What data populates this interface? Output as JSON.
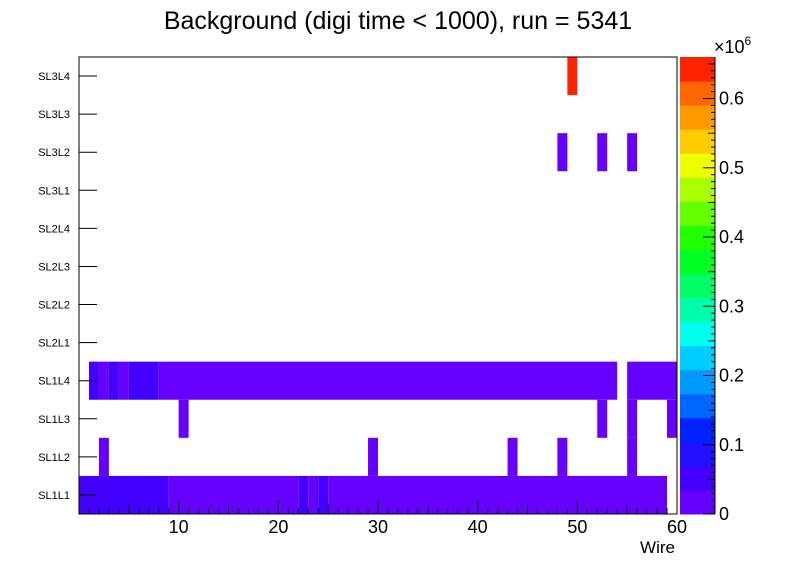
{
  "chart_data": {
    "type": "heatmap",
    "title": "Background (digi time < 1000), run = 5341",
    "xlabel": "Wire",
    "ylabel": "",
    "xlim": [
      0,
      60
    ],
    "x_ticks": [
      "10",
      "20",
      "30",
      "40",
      "50",
      "60"
    ],
    "y_categories": [
      "SL1L1",
      "SL1L2",
      "SL1L3",
      "SL1L4",
      "SL2L1",
      "SL2L2",
      "SL2L3",
      "SL2L4",
      "SL3L1",
      "SL3L2",
      "SL3L3",
      "SL3L4"
    ],
    "z_exponent_label": "×10",
    "z_exponent": "6",
    "z_ticks": [
      "0",
      "0.1",
      "0.2",
      "0.3",
      "0.4",
      "0.5",
      "0.6"
    ],
    "zlim": [
      0,
      0.66
    ],
    "palette": [
      "#6600ff",
      "#4400ff",
      "#2211ff",
      "#0022ff",
      "#0066ff",
      "#0099ff",
      "#00ccff",
      "#00ffee",
      "#00ffaa",
      "#00ff66",
      "#00ff22",
      "#22ff00",
      "#66ff00",
      "#aaff00",
      "#eeff00",
      "#ffcc00",
      "#ff9900",
      "#ff6600",
      "#ff2200"
    ],
    "cells": [
      {
        "row": "SL1L1",
        "x0": 0,
        "x1": 9,
        "value": 0.04
      },
      {
        "row": "SL1L1",
        "x0": 9,
        "x1": 22,
        "value": 0.02
      },
      {
        "row": "SL1L1",
        "x0": 22,
        "x1": 23,
        "value": 0.04
      },
      {
        "row": "SL1L1",
        "x0": 23,
        "x1": 24,
        "value": 0.02
      },
      {
        "row": "SL1L1",
        "x0": 24,
        "x1": 25,
        "value": 0.04
      },
      {
        "row": "SL1L1",
        "x0": 25,
        "x1": 59,
        "value": 0.02
      },
      {
        "row": "SL1L2",
        "x0": 2,
        "x1": 3,
        "value": 0.02
      },
      {
        "row": "SL1L2",
        "x0": 29,
        "x1": 30,
        "value": 0.02
      },
      {
        "row": "SL1L2",
        "x0": 43,
        "x1": 44,
        "value": 0.02
      },
      {
        "row": "SL1L2",
        "x0": 48,
        "x1": 49,
        "value": 0.02
      },
      {
        "row": "SL1L2",
        "x0": 55,
        "x1": 56,
        "value": 0.02
      },
      {
        "row": "SL1L3",
        "x0": 10,
        "x1": 11,
        "value": 0.02
      },
      {
        "row": "SL1L3",
        "x0": 52,
        "x1": 53,
        "value": 0.02
      },
      {
        "row": "SL1L3",
        "x0": 55,
        "x1": 56,
        "value": 0.02
      },
      {
        "row": "SL1L3",
        "x0": 59,
        "x1": 60,
        "value": 0.02
      },
      {
        "row": "SL1L4",
        "x0": 1,
        "x1": 2,
        "value": 0.04
      },
      {
        "row": "SL1L4",
        "x0": 2,
        "x1": 3,
        "value": 0.02
      },
      {
        "row": "SL1L4",
        "x0": 3,
        "x1": 4,
        "value": 0.04
      },
      {
        "row": "SL1L4",
        "x0": 4,
        "x1": 5,
        "value": 0.02
      },
      {
        "row": "SL1L4",
        "x0": 5,
        "x1": 8,
        "value": 0.04
      },
      {
        "row": "SL1L4",
        "x0": 8,
        "x1": 54,
        "value": 0.02
      },
      {
        "row": "SL1L4",
        "x0": 55,
        "x1": 60,
        "value": 0.02
      },
      {
        "row": "SL3L2",
        "x0": 48,
        "x1": 49,
        "value": 0.02
      },
      {
        "row": "SL3L2",
        "x0": 52,
        "x1": 53,
        "value": 0.02
      },
      {
        "row": "SL3L2",
        "x0": 55,
        "x1": 56,
        "value": 0.02
      },
      {
        "row": "SL3L4",
        "x0": 49,
        "x1": 50,
        "value": 0.64
      }
    ]
  }
}
